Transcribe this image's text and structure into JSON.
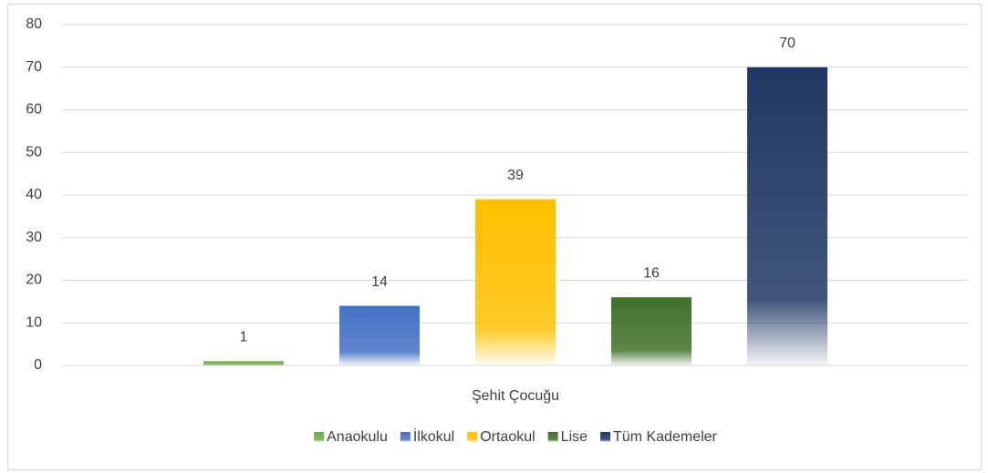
{
  "chart_data": {
    "type": "bar",
    "categories": [
      "Şehit Çocuğu"
    ],
    "series": [
      {
        "name": "Anaokulu",
        "color": "#70ad47",
        "values": [
          1
        ]
      },
      {
        "name": "İlkokul",
        "color": "#4472c4",
        "values": [
          14
        ]
      },
      {
        "name": "Ortaokul",
        "color": "#ffc000",
        "values": [
          39
        ]
      },
      {
        "name": "Lise",
        "color": "#41712b",
        "values": [
          16
        ]
      },
      {
        "name": "Tüm Kademeler",
        "color": "#203864",
        "values": [
          70
        ]
      }
    ],
    "ylim": [
      0,
      80
    ],
    "yticks": [
      0,
      10,
      20,
      30,
      40,
      50,
      60,
      70,
      80
    ],
    "grid": true,
    "legend": "bottom"
  }
}
